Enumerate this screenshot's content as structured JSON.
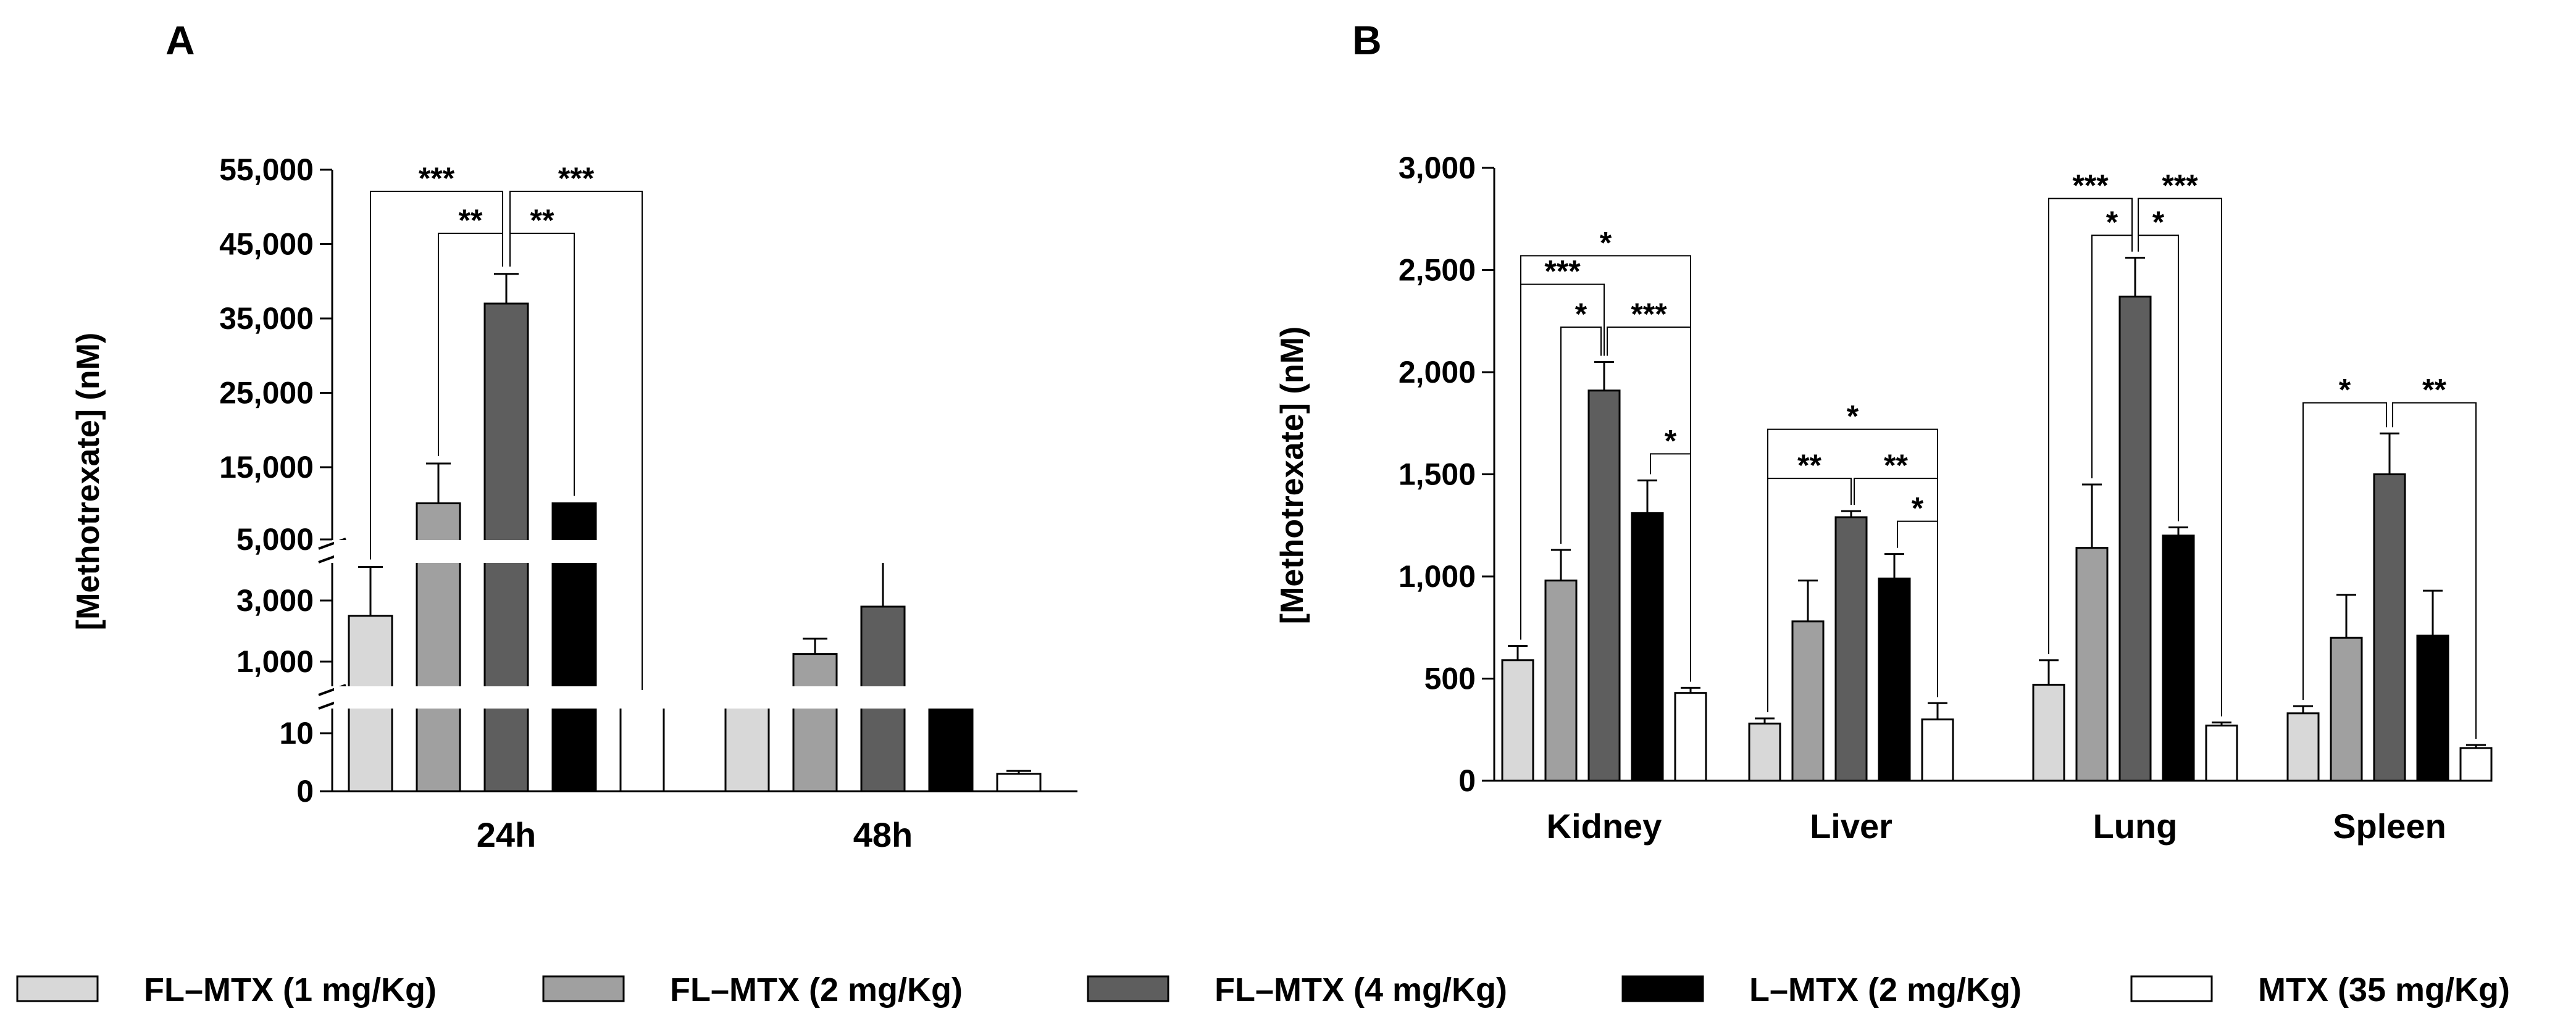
{
  "legend": [
    {
      "label": "FL–MTX (1 mg/Kg)",
      "color": "#d8d8d8"
    },
    {
      "label": "FL–MTX (2 mg/Kg)",
      "color": "#a0a0a0"
    },
    {
      "label": "FL–MTX (4 mg/Kg)",
      "color": "#5e5e5e"
    },
    {
      "label": "L–MTX (2 mg/Kg)",
      "color": "#000000"
    },
    {
      "label": "MTX (35 mg/Kg)",
      "color": "#ffffff"
    }
  ],
  "chart_data": [
    {
      "panel": "A",
      "type": "bar",
      "ylabel": "[Methotrexate] (nM)",
      "axis_breaks": [
        [
          10,
          1000
        ],
        [
          5000,
          15000
        ]
      ],
      "y_tick_labels": [
        "0",
        "10",
        "1,000",
        "3,000",
        "5,000",
        "15,000",
        "25,000",
        "35,000",
        "45,000",
        "55,000"
      ],
      "categories": [
        "24h",
        "48h"
      ],
      "series": [
        {
          "name": "FL–MTX (1 mg/Kg)",
          "values": [
            2500,
            700
          ],
          "errors": [
            1600,
            90
          ]
        },
        {
          "name": "FL–MTX (2 mg/Kg)",
          "values": [
            11000,
            1250
          ],
          "errors": [
            4500,
            500
          ]
        },
        {
          "name": "FL–MTX (4 mg/Kg)",
          "values": [
            37000,
            2800
          ],
          "errors": [
            4000,
            1700
          ]
        },
        {
          "name": "L–MTX (2 mg/Kg)",
          "values": [
            10500,
            600
          ],
          "errors": [
            1500,
            200
          ]
        },
        {
          "name": "MTX (35 mg/Kg)",
          "values": [
            11,
            3
          ],
          "errors": [
            0.5,
            0.5
          ]
        }
      ],
      "significance": [
        {
          "category": "24h",
          "from": 2,
          "to": 0,
          "label": "***"
        },
        {
          "category": "24h",
          "from": 2,
          "to": 4,
          "label": "***"
        },
        {
          "category": "24h",
          "from": 2,
          "to": 1,
          "label": "**"
        },
        {
          "category": "24h",
          "from": 2,
          "to": 3,
          "label": "**"
        }
      ]
    },
    {
      "panel": "B",
      "type": "bar",
      "ylabel": "[Methotrexate] (nM)",
      "ylim": [
        0,
        3000
      ],
      "y_tick_labels": [
        "0",
        "500",
        "1,000",
        "1,500",
        "2,000",
        "2,500",
        "3,000"
      ],
      "categories": [
        "Kidney",
        "Liver",
        "Lung",
        "Spleen"
      ],
      "series": [
        {
          "name": "FL–MTX (1 mg/Kg)",
          "values": [
            590,
            280,
            470,
            330
          ],
          "errors": [
            70,
            25,
            120,
            35
          ]
        },
        {
          "name": "FL–MTX (2 mg/Kg)",
          "values": [
            980,
            780,
            1140,
            700
          ],
          "errors": [
            150,
            200,
            310,
            210
          ]
        },
        {
          "name": "FL–MTX (4 mg/Kg)",
          "values": [
            1910,
            1290,
            2370,
            1500
          ],
          "errors": [
            140,
            30,
            190,
            200
          ]
        },
        {
          "name": "L–MTX (2 mg/Kg)",
          "values": [
            1310,
            990,
            1200,
            710
          ],
          "errors": [
            160,
            120,
            40,
            220
          ]
        },
        {
          "name": "MTX (35 mg/Kg)",
          "values": [
            430,
            300,
            270,
            160
          ],
          "errors": [
            25,
            80,
            15,
            15
          ]
        }
      ],
      "significance": [
        {
          "category": "Kidney",
          "from": 0,
          "to": 4,
          "label": "*"
        },
        {
          "category": "Kidney",
          "from": 0,
          "to": 2,
          "label": "***"
        },
        {
          "category": "Kidney",
          "from": 2,
          "to": 1,
          "label": "*"
        },
        {
          "category": "Kidney",
          "from": 2,
          "to": 4,
          "label": "***"
        },
        {
          "category": "Kidney",
          "from": 3,
          "to": 4,
          "label": "*"
        },
        {
          "category": "Liver",
          "from": 0,
          "to": 4,
          "label": "*"
        },
        {
          "category": "Liver",
          "from": 0,
          "to": 2,
          "label": "**"
        },
        {
          "category": "Liver",
          "from": 2,
          "to": 4,
          "label": "**"
        },
        {
          "category": "Liver",
          "from": 3,
          "to": 4,
          "label": "*"
        },
        {
          "category": "Lung",
          "from": 2,
          "to": 0,
          "label": "***"
        },
        {
          "category": "Lung",
          "from": 2,
          "to": 4,
          "label": "***"
        },
        {
          "category": "Lung",
          "from": 2,
          "to": 1,
          "label": "*"
        },
        {
          "category": "Lung",
          "from": 2,
          "to": 3,
          "label": "*"
        },
        {
          "category": "Spleen",
          "from": 2,
          "to": 0,
          "label": "*"
        },
        {
          "category": "Spleen",
          "from": 2,
          "to": 4,
          "label": "**"
        }
      ]
    }
  ]
}
